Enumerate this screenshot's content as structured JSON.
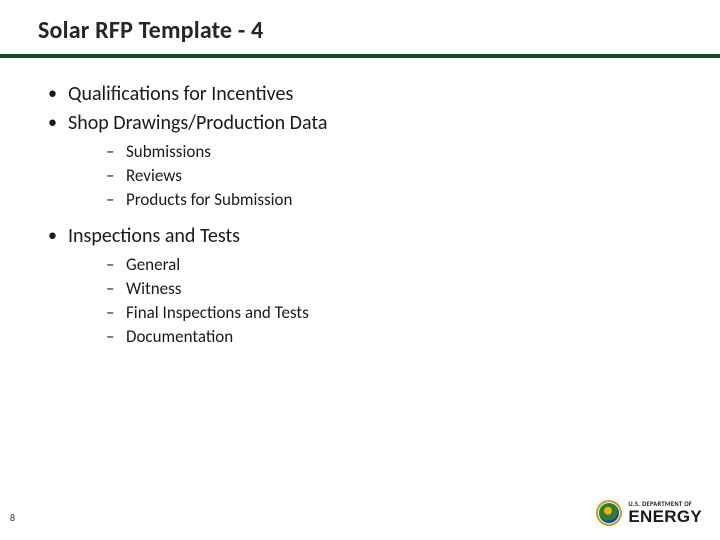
{
  "title": "Solar RFP Template - 4",
  "rule_color": "#0e4c2b",
  "bullets": {
    "b0": "Qualifications for Incentives",
    "b1": "Shop Drawings/Production Data",
    "b1_sub": {
      "s0": "Submissions",
      "s1": "Reviews",
      "s2": "Products for Submission"
    },
    "b2": "Inspections and Tests",
    "b2_sub": {
      "s0": "General",
      "s1": "Witness",
      "s2": "Final Inspections and Tests",
      "s3": "Documentation"
    }
  },
  "page_number": "8",
  "logo": {
    "dept": "U.S. DEPARTMENT OF",
    "name": "ENERGY"
  }
}
